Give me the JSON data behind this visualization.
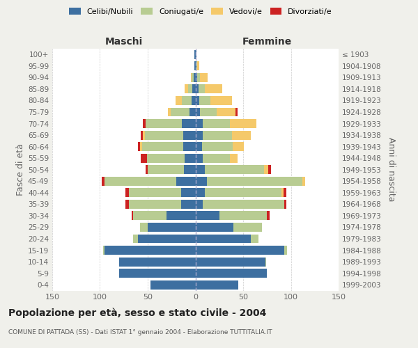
{
  "age_groups": [
    "0-4",
    "5-9",
    "10-14",
    "15-19",
    "20-24",
    "25-29",
    "30-34",
    "35-39",
    "40-44",
    "45-49",
    "50-54",
    "55-59",
    "60-64",
    "65-69",
    "70-74",
    "75-79",
    "80-84",
    "85-89",
    "90-94",
    "95-99",
    "100+"
  ],
  "birth_years": [
    "1999-2003",
    "1994-1998",
    "1989-1993",
    "1984-1988",
    "1979-1983",
    "1974-1978",
    "1969-1973",
    "1964-1968",
    "1959-1963",
    "1954-1958",
    "1949-1953",
    "1944-1948",
    "1939-1943",
    "1934-1938",
    "1929-1933",
    "1924-1928",
    "1919-1923",
    "1914-1918",
    "1909-1913",
    "1904-1908",
    "≤ 1903"
  ],
  "male_celibi": [
    47,
    80,
    80,
    95,
    60,
    50,
    30,
    15,
    15,
    20,
    12,
    11,
    13,
    13,
    14,
    6,
    4,
    3,
    2,
    1,
    1
  ],
  "male_coniugati": [
    0,
    0,
    0,
    2,
    5,
    8,
    35,
    55,
    55,
    75,
    38,
    40,
    43,
    40,
    38,
    20,
    10,
    5,
    2,
    0,
    0
  ],
  "male_vedovi": [
    0,
    0,
    0,
    0,
    0,
    0,
    0,
    0,
    0,
    0,
    0,
    0,
    2,
    2,
    0,
    3,
    7,
    3,
    1,
    0,
    0
  ],
  "male_divorziati": [
    0,
    0,
    0,
    0,
    0,
    0,
    2,
    3,
    3,
    3,
    2,
    6,
    2,
    2,
    3,
    0,
    0,
    0,
    0,
    0,
    0
  ],
  "female_nubili": [
    45,
    75,
    73,
    93,
    58,
    40,
    25,
    8,
    10,
    12,
    10,
    8,
    7,
    8,
    8,
    5,
    4,
    3,
    2,
    1,
    1
  ],
  "female_coniugate": [
    0,
    0,
    1,
    3,
    8,
    30,
    50,
    85,
    80,
    100,
    62,
    28,
    32,
    30,
    28,
    17,
    12,
    7,
    3,
    1,
    0
  ],
  "female_vedove": [
    0,
    0,
    0,
    0,
    0,
    0,
    0,
    0,
    2,
    3,
    4,
    8,
    12,
    20,
    28,
    20,
    22,
    18,
    8,
    2,
    0
  ],
  "female_divorziate": [
    0,
    0,
    0,
    0,
    0,
    0,
    3,
    2,
    3,
    0,
    3,
    0,
    0,
    0,
    0,
    2,
    0,
    0,
    0,
    0,
    0
  ],
  "color_celibi": "#3d6fa0",
  "color_coniugati": "#b8cc92",
  "color_vedovi": "#f5c96a",
  "color_divorziati": "#cc2222",
  "title": "Popolazione per età, sesso e stato civile - 2004",
  "subtitle": "COMUNE DI PATTADA (SS) - Dati ISTAT 1° gennaio 2004 - Elaborazione TUTTITALIA.IT",
  "ylabel_left": "Fasce di età",
  "ylabel_right": "Anni di nascita",
  "label_maschi": "Maschi",
  "label_femmine": "Femmine",
  "legend_labels": [
    "Celibi/Nubili",
    "Coniugati/e",
    "Vedovi/e",
    "Divorziati/e"
  ],
  "xlim": 150,
  "bg_color": "#f0f0eb",
  "plot_bg": "#ffffff"
}
